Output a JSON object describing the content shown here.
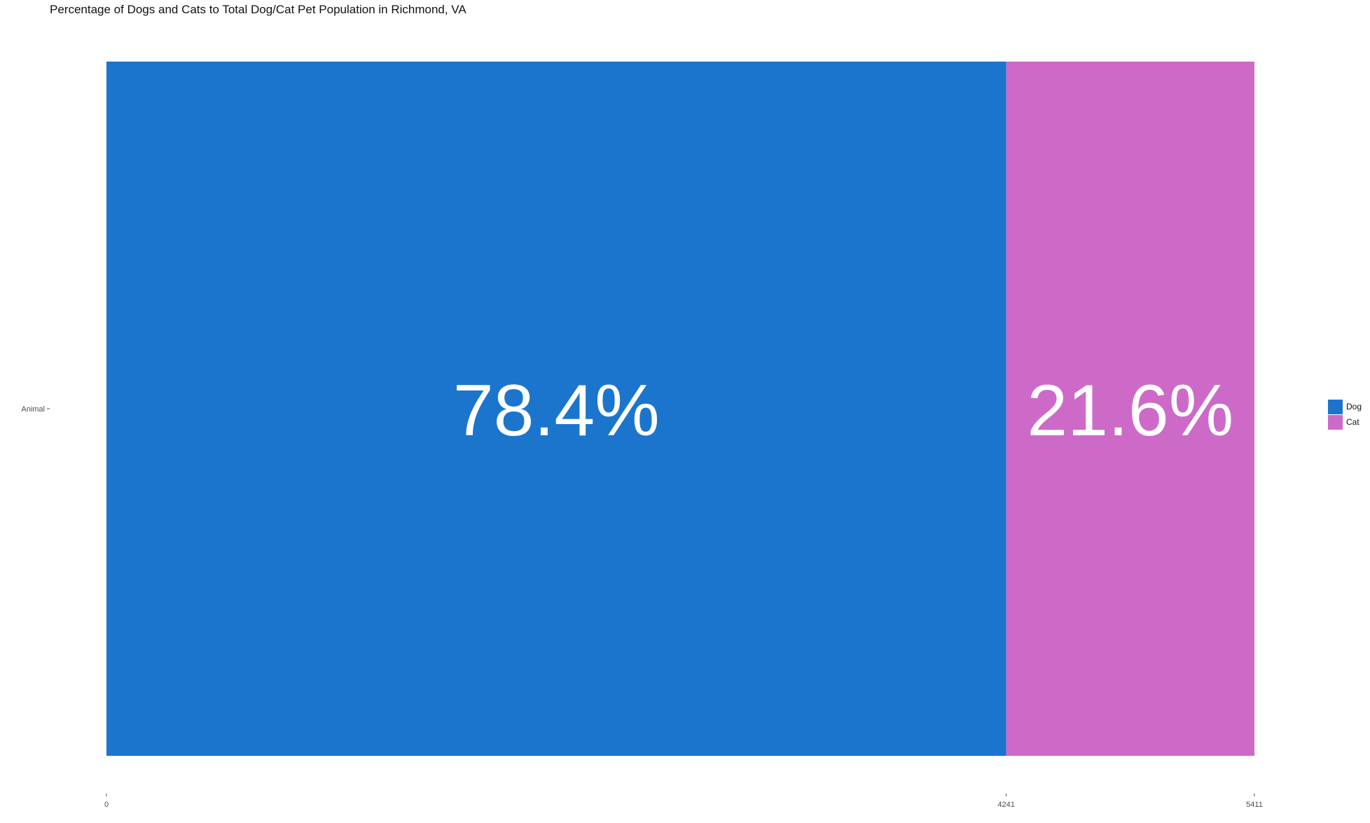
{
  "chart_data": {
    "type": "bar",
    "orientation": "horizontal-stacked",
    "title": "Percentage of Dogs and Cats to Total Dog/Cat Pet Population in Richmond, VA",
    "category_label": "Animal",
    "xlabel": "",
    "ylabel": "",
    "xlim": [
      0,
      5411
    ],
    "x_ticks": [
      "0",
      "4241",
      "5411"
    ],
    "grid": false,
    "legend_placement": "right",
    "series": [
      {
        "name": "Dog",
        "value": 4241,
        "label": "78.4%",
        "color": "#1b75cd"
      },
      {
        "name": "Cat",
        "value": 1170,
        "label": "21.6%",
        "color": "#cd6ac8"
      }
    ]
  }
}
